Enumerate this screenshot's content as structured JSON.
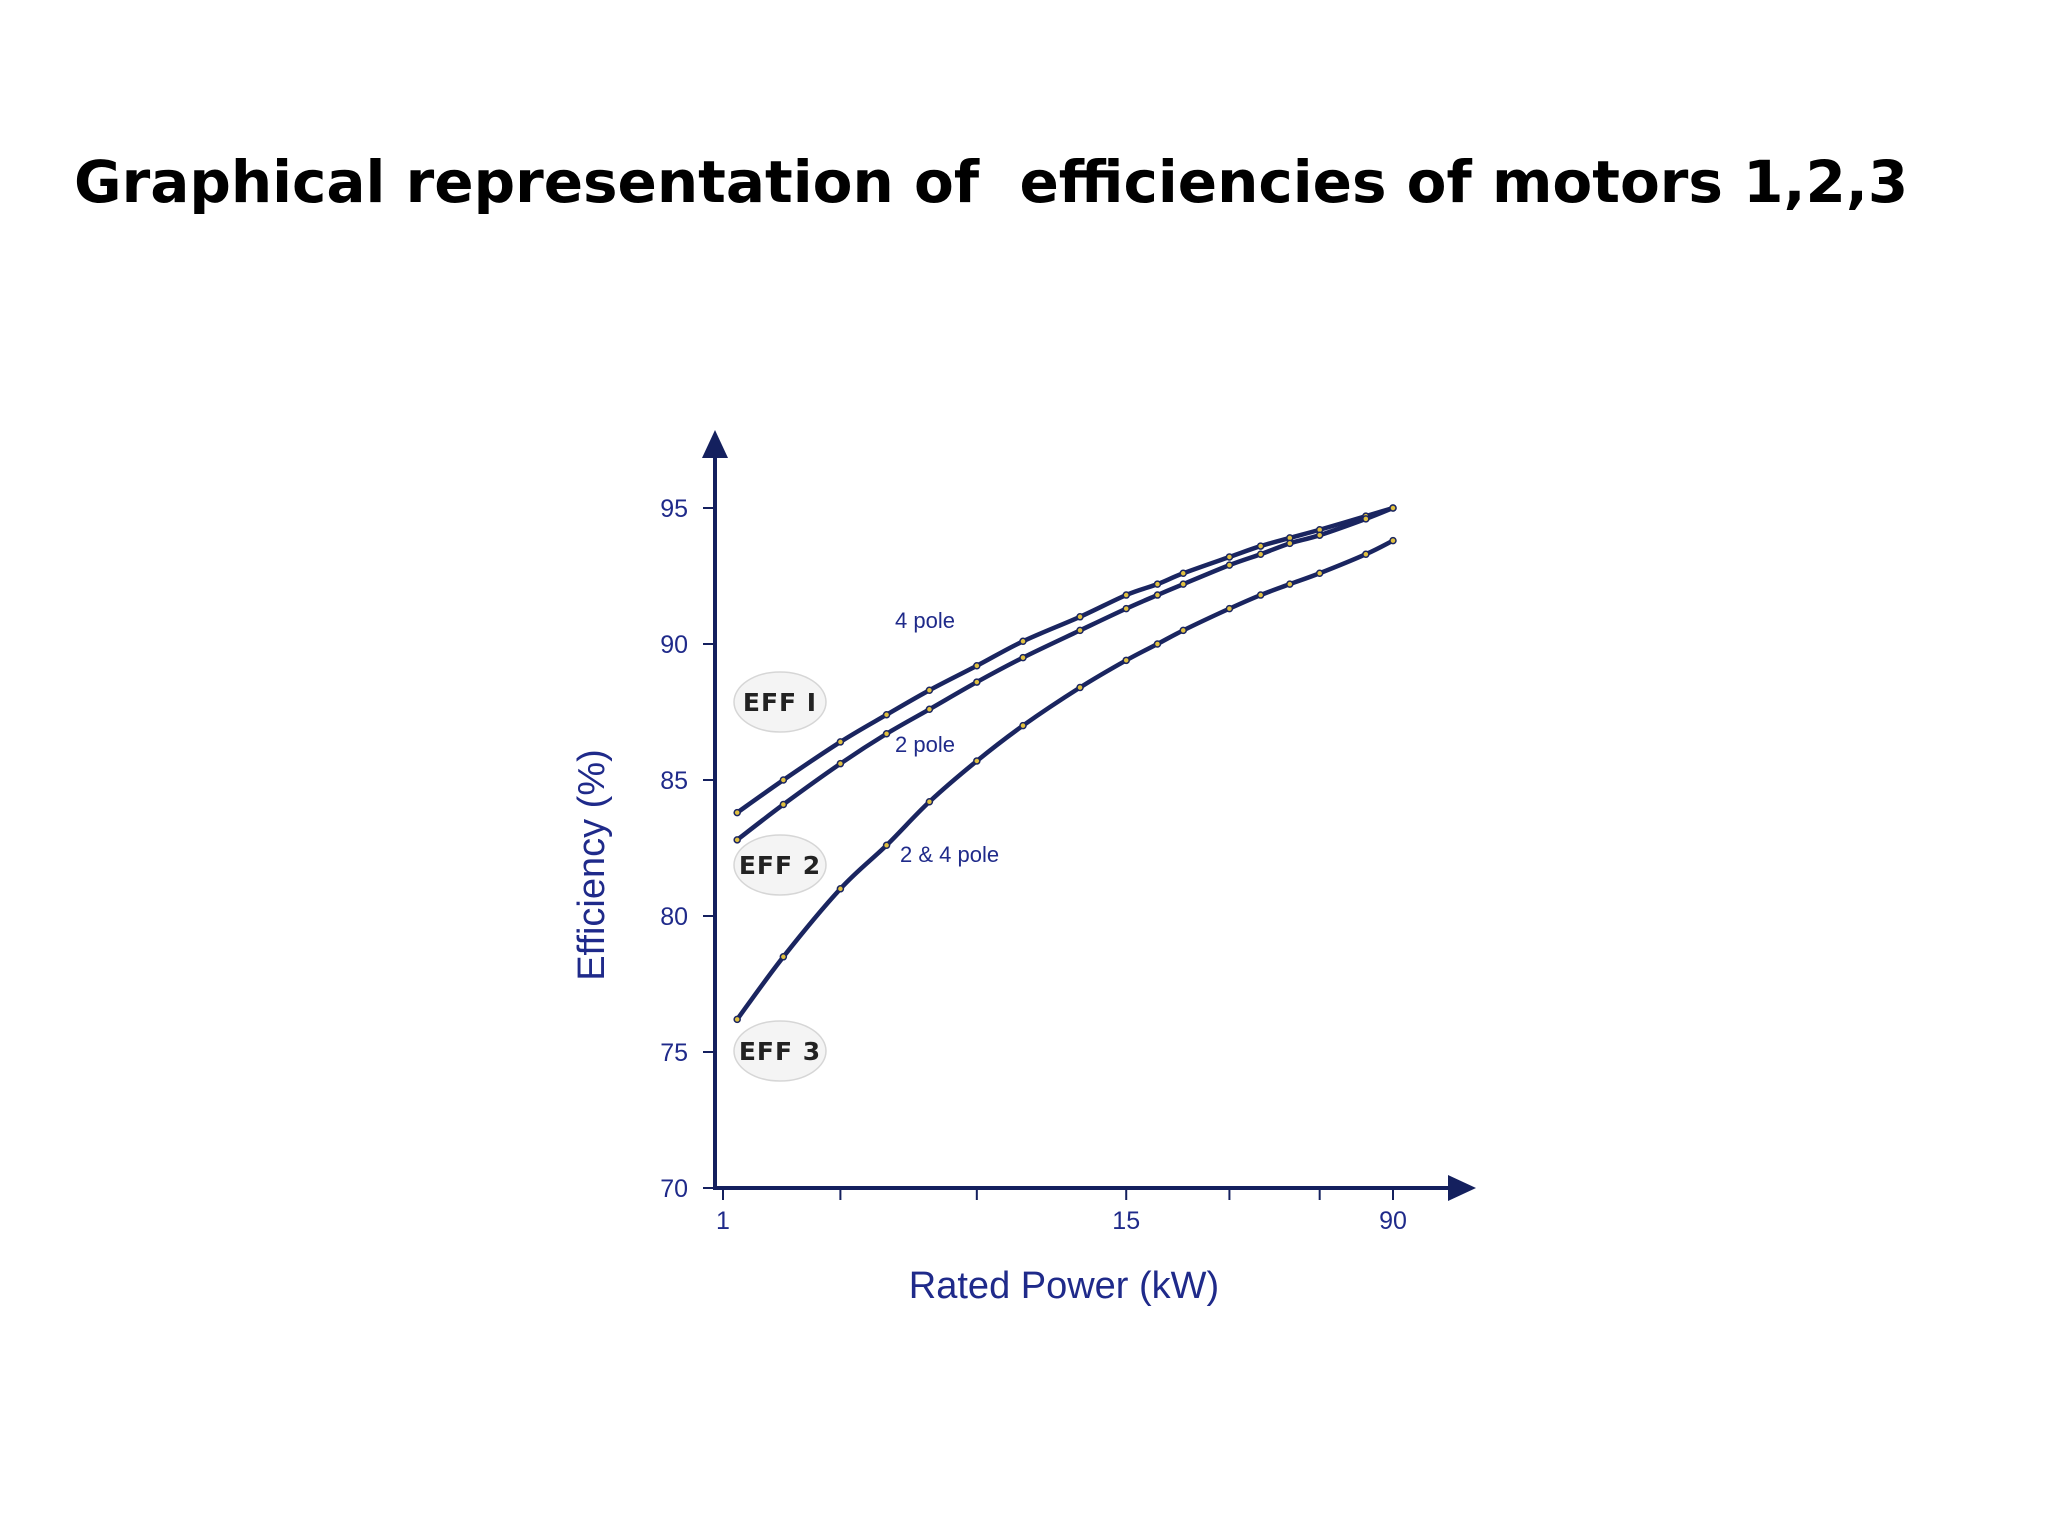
{
  "slide": {
    "title": "Graphical representation of  efficiencies of motors 1,2,3"
  },
  "colors": {
    "axis": "#14205e",
    "curve": "#1a2560",
    "label_text": "#1f2a8a",
    "marker": "#e0c040"
  },
  "chart_data": {
    "type": "line",
    "xlabel": "Rated Power (kW)",
    "ylabel": "Efficiency (%)",
    "x_scale": "log",
    "x_ticks": [
      1,
      15,
      90
    ],
    "y_ticks": [
      70,
      75,
      80,
      85,
      90,
      95
    ],
    "ylim": [
      70,
      97
    ],
    "grid": false,
    "series": [
      {
        "id": "eff1_4pole",
        "label": "4 pole",
        "points": [
          [
            1.1,
            83.8
          ],
          [
            1.5,
            85.0
          ],
          [
            2.2,
            86.4
          ],
          [
            3,
            87.4
          ],
          [
            4,
            88.3
          ],
          [
            5.5,
            89.2
          ],
          [
            7.5,
            90.1
          ],
          [
            11,
            91.0
          ],
          [
            15,
            91.8
          ],
          [
            18.5,
            92.2
          ],
          [
            22,
            92.6
          ],
          [
            30,
            93.2
          ],
          [
            37,
            93.6
          ],
          [
            45,
            93.9
          ],
          [
            55,
            94.2
          ],
          [
            75,
            94.7
          ],
          [
            90,
            95.0
          ]
        ]
      },
      {
        "id": "eff1_2pole",
        "label": "2 pole",
        "points": [
          [
            1.1,
            82.8
          ],
          [
            1.5,
            84.1
          ],
          [
            2.2,
            85.6
          ],
          [
            3,
            86.7
          ],
          [
            4,
            87.6
          ],
          [
            5.5,
            88.6
          ],
          [
            7.5,
            89.5
          ],
          [
            11,
            90.5
          ],
          [
            15,
            91.3
          ],
          [
            18.5,
            91.8
          ],
          [
            22,
            92.2
          ],
          [
            30,
            92.9
          ],
          [
            37,
            93.3
          ],
          [
            45,
            93.7
          ],
          [
            55,
            94.0
          ],
          [
            75,
            94.6
          ],
          [
            90,
            95.0
          ]
        ]
      },
      {
        "id": "eff2_2and4pole",
        "label": "2 & 4 pole",
        "points": [
          [
            1.1,
            76.2
          ],
          [
            1.5,
            78.5
          ],
          [
            2.2,
            81.0
          ],
          [
            3,
            82.6
          ],
          [
            4,
            84.2
          ],
          [
            5.5,
            85.7
          ],
          [
            7.5,
            87.0
          ],
          [
            11,
            88.4
          ],
          [
            15,
            89.4
          ],
          [
            18.5,
            90.0
          ],
          [
            22,
            90.5
          ],
          [
            30,
            91.3
          ],
          [
            37,
            91.8
          ],
          [
            45,
            92.2
          ],
          [
            55,
            92.6
          ],
          [
            75,
            93.3
          ],
          [
            90,
            93.8
          ]
        ]
      }
    ],
    "region_labels": [
      "EFF I",
      "EFF 2",
      "EFF 3"
    ]
  }
}
